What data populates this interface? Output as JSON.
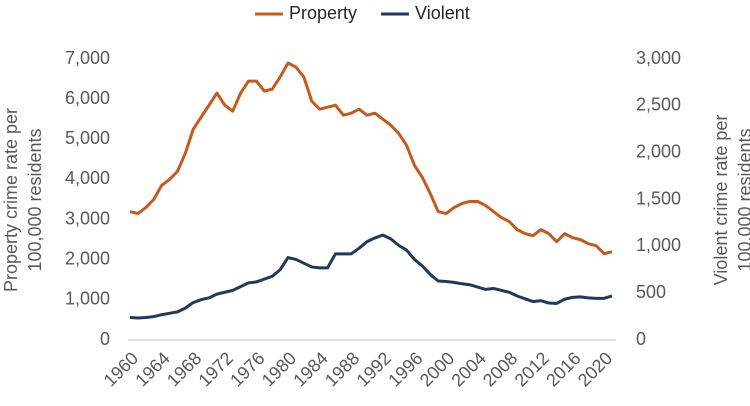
{
  "chart_data": {
    "type": "line",
    "y_label": [
      "Property crime rate per",
      "100,000 residents"
    ],
    "y2_label": [
      "Violent crime rate per",
      "100,000 residents"
    ],
    "x": [
      1960,
      1961,
      1962,
      1963,
      1964,
      1965,
      1966,
      1967,
      1968,
      1969,
      1970,
      1971,
      1972,
      1973,
      1974,
      1975,
      1976,
      1977,
      1978,
      1979,
      1980,
      1981,
      1982,
      1983,
      1984,
      1985,
      1986,
      1987,
      1988,
      1989,
      1990,
      1991,
      1992,
      1993,
      1994,
      1995,
      1996,
      1997,
      1998,
      1999,
      2000,
      2001,
      2002,
      2003,
      2004,
      2005,
      2006,
      2007,
      2008,
      2009,
      2010,
      2011,
      2012,
      2013,
      2014,
      2015,
      2016,
      2017,
      2018,
      2019,
      2020,
      2021
    ],
    "series": [
      {
        "name": "Property",
        "color": "#c55a1e",
        "axis": "y",
        "values": [
          3200,
          3150,
          3300,
          3500,
          3850,
          4000,
          4200,
          4650,
          5250,
          5550,
          5850,
          6150,
          5850,
          5700,
          6150,
          6450,
          6450,
          6200,
          6250,
          6550,
          6900,
          6800,
          6550,
          5950,
          5750,
          5800,
          5850,
          5600,
          5650,
          5750,
          5600,
          5650,
          5500,
          5350,
          5150,
          4850,
          4350,
          4050,
          3650,
          3200,
          3150,
          3300,
          3400,
          3450,
          3450,
          3350,
          3200,
          3050,
          2950,
          2750,
          2650,
          2600,
          2750,
          2650,
          2450,
          2650,
          2550,
          2500,
          2400,
          2350,
          2150,
          2200
        ]
      },
      {
        "name": "Violent",
        "color": "#1f3a5a",
        "axis": "y2",
        "values": [
          240,
          235,
          240,
          250,
          270,
          285,
          300,
          340,
          400,
          430,
          450,
          490,
          510,
          530,
          570,
          610,
          620,
          650,
          680,
          750,
          880,
          860,
          820,
          780,
          770,
          770,
          920,
          920,
          920,
          980,
          1050,
          1090,
          1120,
          1080,
          1010,
          960,
          860,
          790,
          700,
          630,
          625,
          615,
          600,
          590,
          565,
          540,
          550,
          530,
          510,
          470,
          440,
          410,
          420,
          395,
          390,
          435,
          455,
          460,
          450,
          445,
          445,
          470
        ]
      }
    ],
    "xlim": [
      1960,
      2021
    ],
    "xticks": [
      1960,
      1964,
      1968,
      1972,
      1976,
      1980,
      1984,
      1988,
      1992,
      1996,
      2000,
      2004,
      2008,
      2012,
      2016,
      2020
    ],
    "ylim": [
      0,
      7000
    ],
    "yticks": [
      0,
      {
        "value": 1000,
        "label": "1,000"
      },
      {
        "value": 2000,
        "label": "2,000"
      },
      {
        "value": 3000,
        "label": "3,000"
      },
      {
        "value": 4000,
        "label": "4,000"
      },
      {
        "value": 5000,
        "label": "5,000"
      },
      {
        "value": 6000,
        "label": "6,000"
      },
      {
        "value": 7000,
        "label": "7,000"
      }
    ],
    "y2lim": [
      0,
      3000
    ],
    "y2ticks": [
      0,
      500,
      {
        "value": 1000,
        "label": "1,000"
      },
      {
        "value": 1500,
        "label": "1,500"
      },
      {
        "value": 2000,
        "label": "2,000"
      },
      {
        "value": 2500,
        "label": "2,500"
      },
      {
        "value": 3000,
        "label": "3,000"
      }
    ],
    "legend": "top",
    "grid": false
  }
}
